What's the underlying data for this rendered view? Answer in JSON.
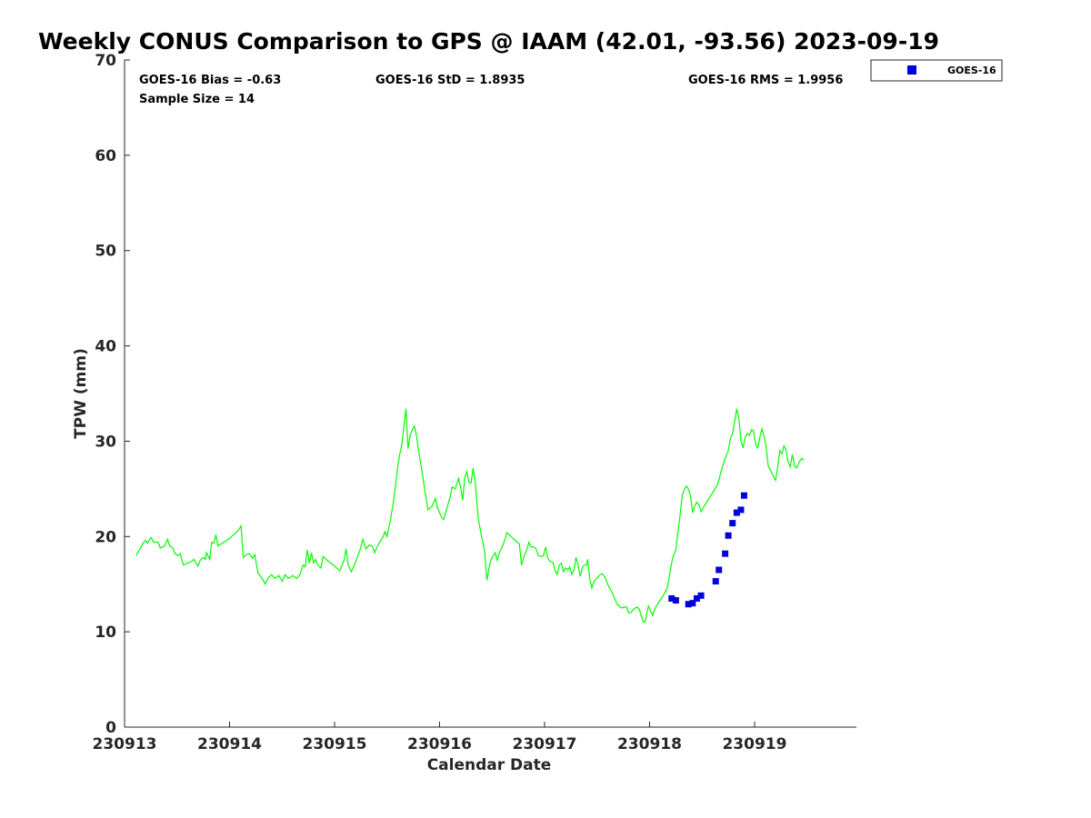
{
  "chart_data": {
    "type": "scatter",
    "title": "Weekly CONUS Comparison to GPS @ IAAM (42.01, -93.56) 2023-09-19",
    "xlabel": "Calendar Date",
    "ylabel": "TPW (mm)",
    "xticks": [
      "230913",
      "230914",
      "230915",
      "230916",
      "230917",
      "230918",
      "230919"
    ],
    "xlim": [
      0,
      6.97
    ],
    "ylim": [
      0,
      70
    ],
    "yticks": [
      0,
      10,
      20,
      30,
      40,
      50,
      60,
      70
    ],
    "grid": false,
    "legend_position": "top-right",
    "stats": {
      "bias": "GOES-16 Bias = -0.63",
      "sample": "Sample Size = 14",
      "std": "GOES-16 StD = 1.8935",
      "rms": "GOES-16 RMS = 1.9956"
    },
    "series": [
      {
        "kind": "line",
        "color": "#00ff00",
        "points": [
          [
            0.11,
            18.0
          ],
          [
            0.14,
            18.6
          ],
          [
            0.17,
            19.2
          ],
          [
            0.2,
            19.6
          ],
          [
            0.22,
            19.3
          ],
          [
            0.25,
            19.9
          ],
          [
            0.28,
            19.4
          ],
          [
            0.32,
            19.4
          ],
          [
            0.34,
            18.8
          ],
          [
            0.38,
            19.0
          ],
          [
            0.41,
            19.7
          ],
          [
            0.43,
            19.0
          ],
          [
            0.46,
            18.8
          ],
          [
            0.48,
            18.2
          ],
          [
            0.51,
            18.0
          ],
          [
            0.53,
            18.2
          ],
          [
            0.56,
            17.0
          ],
          [
            0.6,
            17.2
          ],
          [
            0.64,
            17.4
          ],
          [
            0.66,
            17.6
          ],
          [
            0.68,
            17.3
          ],
          [
            0.7,
            16.9
          ],
          [
            0.72,
            17.5
          ],
          [
            0.75,
            17.8
          ],
          [
            0.77,
            17.6
          ],
          [
            0.78,
            18.3
          ],
          [
            0.81,
            17.6
          ],
          [
            0.83,
            19.4
          ],
          [
            0.85,
            19.3
          ],
          [
            0.87,
            20.2
          ],
          [
            0.89,
            19.0
          ],
          [
            1.0,
            19.8
          ],
          [
            1.08,
            20.6
          ],
          [
            1.11,
            21.1
          ],
          [
            1.13,
            17.8
          ],
          [
            1.16,
            18.1
          ],
          [
            1.19,
            18.2
          ],
          [
            1.22,
            17.7
          ],
          [
            1.24,
            18.1
          ],
          [
            1.27,
            16.2
          ],
          [
            1.32,
            15.4
          ],
          [
            1.34,
            15.0
          ],
          [
            1.37,
            15.7
          ],
          [
            1.4,
            16.0
          ],
          [
            1.43,
            15.6
          ],
          [
            1.47,
            15.9
          ],
          [
            1.5,
            15.3
          ],
          [
            1.53,
            16.0
          ],
          [
            1.56,
            15.6
          ],
          [
            1.6,
            15.9
          ],
          [
            1.64,
            15.6
          ],
          [
            1.67,
            16.0
          ],
          [
            1.7,
            17.0
          ],
          [
            1.72,
            16.8
          ],
          [
            1.74,
            18.6
          ],
          [
            1.76,
            17.2
          ],
          [
            1.78,
            18.3
          ],
          [
            1.8,
            17.2
          ],
          [
            1.82,
            17.6
          ],
          [
            1.84,
            17.0
          ],
          [
            1.87,
            16.7
          ],
          [
            1.89,
            17.9
          ],
          [
            1.94,
            17.4
          ],
          [
            2.0,
            16.9
          ],
          [
            2.05,
            16.4
          ],
          [
            2.09,
            17.5
          ],
          [
            2.11,
            18.7
          ],
          [
            2.13,
            17.0
          ],
          [
            2.16,
            16.3
          ],
          [
            2.2,
            17.3
          ],
          [
            2.24,
            18.5
          ],
          [
            2.27,
            19.7
          ],
          [
            2.3,
            18.7
          ],
          [
            2.33,
            19.1
          ],
          [
            2.36,
            19.0
          ],
          [
            2.38,
            18.3
          ],
          [
            2.41,
            19.0
          ],
          [
            2.44,
            19.6
          ],
          [
            2.46,
            19.9
          ],
          [
            2.48,
            20.5
          ],
          [
            2.5,
            20.0
          ],
          [
            2.53,
            21.6
          ],
          [
            2.56,
            23.6
          ],
          [
            2.58,
            25.3
          ],
          [
            2.6,
            27.2
          ],
          [
            2.62,
            28.6
          ],
          [
            2.64,
            29.6
          ],
          [
            2.66,
            31.5
          ],
          [
            2.68,
            33.4
          ],
          [
            2.7,
            29.2
          ],
          [
            2.72,
            30.6
          ],
          [
            2.74,
            31.2
          ],
          [
            2.76,
            31.6
          ],
          [
            2.78,
            30.6
          ],
          [
            2.8,
            29.0
          ],
          [
            2.83,
            27.0
          ],
          [
            2.86,
            24.8
          ],
          [
            2.89,
            22.8
          ],
          [
            2.93,
            23.2
          ],
          [
            2.96,
            24.0
          ],
          [
            2.98,
            23.0
          ],
          [
            3.02,
            22.0
          ],
          [
            3.04,
            21.8
          ],
          [
            3.07,
            23.0
          ],
          [
            3.1,
            24.1
          ],
          [
            3.12,
            25.2
          ],
          [
            3.15,
            25.0
          ],
          [
            3.18,
            26.1
          ],
          [
            3.2,
            25.2
          ],
          [
            3.22,
            23.8
          ],
          [
            3.24,
            26.2
          ],
          [
            3.26,
            26.8
          ],
          [
            3.28,
            25.7
          ],
          [
            3.3,
            25.6
          ],
          [
            3.32,
            27.2
          ],
          [
            3.34,
            25.6
          ],
          [
            3.37,
            21.8
          ],
          [
            3.4,
            20.0
          ],
          [
            3.43,
            18.4
          ],
          [
            3.45,
            15.4
          ],
          [
            3.48,
            17.2
          ],
          [
            3.5,
            17.8
          ],
          [
            3.53,
            18.3
          ],
          [
            3.55,
            17.5
          ],
          [
            3.57,
            18.3
          ],
          [
            3.6,
            19.0
          ],
          [
            3.62,
            19.6
          ],
          [
            3.64,
            20.4
          ],
          [
            3.67,
            20.1
          ],
          [
            3.7,
            19.8
          ],
          [
            3.73,
            19.5
          ],
          [
            3.76,
            19.2
          ],
          [
            3.78,
            17.0
          ],
          [
            3.8,
            17.8
          ],
          [
            3.83,
            18.6
          ],
          [
            3.85,
            19.4
          ],
          [
            3.87,
            18.9
          ],
          [
            3.9,
            18.9
          ],
          [
            3.92,
            18.7
          ],
          [
            3.94,
            18.0
          ],
          [
            3.97,
            17.9
          ],
          [
            3.99,
            18.0
          ],
          [
            4.01,
            18.9
          ],
          [
            4.03,
            17.8
          ],
          [
            4.05,
            17.4
          ],
          [
            4.08,
            17.3
          ],
          [
            4.1,
            16.4
          ],
          [
            4.12,
            16.0
          ],
          [
            4.14,
            17.0
          ],
          [
            4.16,
            17.2
          ],
          [
            4.18,
            16.3
          ],
          [
            4.2,
            16.7
          ],
          [
            4.22,
            16.5
          ],
          [
            4.24,
            16.8
          ],
          [
            4.26,
            16.0
          ],
          [
            4.28,
            16.5
          ],
          [
            4.3,
            17.8
          ],
          [
            4.32,
            17.0
          ],
          [
            4.34,
            15.8
          ],
          [
            4.36,
            16.8
          ],
          [
            4.38,
            17.0
          ],
          [
            4.4,
            17.0
          ],
          [
            4.41,
            17.6
          ],
          [
            4.43,
            15.6
          ],
          [
            4.45,
            14.6
          ],
          [
            4.47,
            15.3
          ],
          [
            4.5,
            15.6
          ],
          [
            4.53,
            16.0
          ],
          [
            4.55,
            16.1
          ],
          [
            4.58,
            15.6
          ],
          [
            4.6,
            15.0
          ],
          [
            4.63,
            14.4
          ],
          [
            4.66,
            13.7
          ],
          [
            4.69,
            12.9
          ],
          [
            4.71,
            12.7
          ],
          [
            4.73,
            12.5
          ],
          [
            4.76,
            12.6
          ],
          [
            4.78,
            12.6
          ],
          [
            4.8,
            12.0
          ],
          [
            4.82,
            12.0
          ],
          [
            4.85,
            12.4
          ],
          [
            4.88,
            12.6
          ],
          [
            4.9,
            12.4
          ],
          [
            4.93,
            11.4
          ],
          [
            4.94,
            11.0
          ],
          [
            4.96,
            11.1
          ],
          [
            4.97,
            11.8
          ],
          [
            4.99,
            12.7
          ],
          [
            5.01,
            12.2
          ],
          [
            5.03,
            11.7
          ],
          [
            5.05,
            12.4
          ],
          [
            5.07,
            12.8
          ],
          [
            5.1,
            13.3
          ],
          [
            5.13,
            13.8
          ],
          [
            5.15,
            14.2
          ],
          [
            5.17,
            14.6
          ],
          [
            5.2,
            16.6
          ],
          [
            5.22,
            17.8
          ],
          [
            5.25,
            18.6
          ],
          [
            5.27,
            20.5
          ],
          [
            5.29,
            22.2
          ],
          [
            5.31,
            24.3
          ],
          [
            5.33,
            24.9
          ],
          [
            5.35,
            25.3
          ],
          [
            5.37,
            25.0
          ],
          [
            5.39,
            24.3
          ],
          [
            5.41,
            22.5
          ],
          [
            5.43,
            23.2
          ],
          [
            5.45,
            23.6
          ],
          [
            5.47,
            23.3
          ],
          [
            5.49,
            22.6
          ],
          [
            5.51,
            23.0
          ],
          [
            5.55,
            23.7
          ],
          [
            5.6,
            24.6
          ],
          [
            5.65,
            25.5
          ],
          [
            5.69,
            27.2
          ],
          [
            5.72,
            28.2
          ],
          [
            5.75,
            29.0
          ],
          [
            5.77,
            30.3
          ],
          [
            5.79,
            30.8
          ],
          [
            5.81,
            32.0
          ],
          [
            5.83,
            33.4
          ],
          [
            5.85,
            32.5
          ],
          [
            5.87,
            30.0
          ],
          [
            5.89,
            29.3
          ],
          [
            5.91,
            30.4
          ],
          [
            5.93,
            30.8
          ],
          [
            5.95,
            30.6
          ],
          [
            5.97,
            31.2
          ],
          [
            5.99,
            31.1
          ],
          [
            6.01,
            29.7
          ],
          [
            6.03,
            29.3
          ],
          [
            6.05,
            30.4
          ],
          [
            6.07,
            31.3
          ],
          [
            6.09,
            30.5
          ],
          [
            6.11,
            29.4
          ],
          [
            6.13,
            27.4
          ],
          [
            6.15,
            27.0
          ],
          [
            6.18,
            26.3
          ],
          [
            6.2,
            25.9
          ],
          [
            6.22,
            27.3
          ],
          [
            6.24,
            29.0
          ],
          [
            6.26,
            28.7
          ],
          [
            6.28,
            29.5
          ],
          [
            6.3,
            29.1
          ],
          [
            6.32,
            27.8
          ],
          [
            6.34,
            27.3
          ],
          [
            6.36,
            28.6
          ],
          [
            6.38,
            27.4
          ],
          [
            6.4,
            27.2
          ],
          [
            6.43,
            27.9
          ],
          [
            6.45,
            28.2
          ],
          [
            6.47,
            28.0
          ]
        ]
      },
      {
        "name": "GOES-16",
        "kind": "markers",
        "color": "#0000dd",
        "points": [
          [
            5.21,
            13.5
          ],
          [
            5.25,
            13.3
          ],
          [
            5.37,
            12.9
          ],
          [
            5.41,
            13.0
          ],
          [
            5.45,
            13.5
          ],
          [
            5.49,
            13.8
          ],
          [
            5.63,
            15.3
          ],
          [
            5.66,
            16.5
          ],
          [
            5.72,
            18.2
          ],
          [
            5.75,
            20.1
          ],
          [
            5.79,
            21.4
          ],
          [
            5.83,
            22.5
          ],
          [
            5.87,
            22.8
          ],
          [
            5.9,
            24.3
          ]
        ]
      }
    ]
  }
}
